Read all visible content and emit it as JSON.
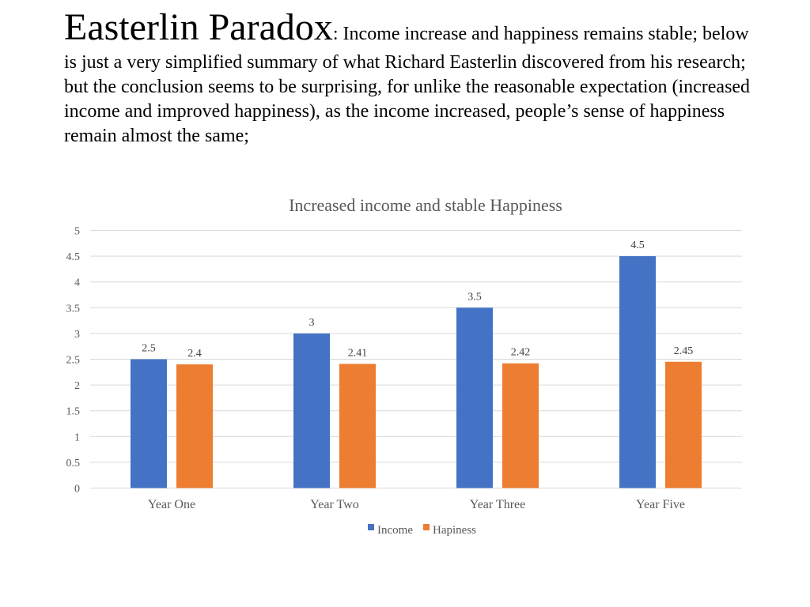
{
  "slide": {
    "title": "Easterlin Paradox",
    "subtitle": ": Income increase and happiness remains stable; below is just a very simplified summary of what Richard Easterlin discovered from his research; but the conclusion seems to be surprising, for unlike the reasonable expectation (increased income and improved happiness), as the income increased, people’s sense of happiness remain almost the same;"
  },
  "chart_data": {
    "type": "bar",
    "title": "Increased income and stable Happiness",
    "categories": [
      "Year One",
      "Year Two",
      "Year Three",
      "Year Five"
    ],
    "series": [
      {
        "name": "Income",
        "color": "#4472C4",
        "values": [
          2.5,
          3,
          3.5,
          4.5
        ],
        "labels": [
          "2.5",
          "3",
          "3.5",
          "4.5"
        ]
      },
      {
        "name": "Hapiness",
        "color": "#ED7D31",
        "values": [
          2.4,
          2.41,
          2.42,
          2.45
        ],
        "labels": [
          "2.4",
          "2.41",
          "2.42",
          "2.45"
        ]
      }
    ],
    "yticks": [
      "0",
      "0.5",
      "1",
      "1.5",
      "2",
      "2.5",
      "3",
      "3.5",
      "4",
      "4.5",
      "5"
    ],
    "ylim": [
      0,
      5
    ],
    "grid": true,
    "legend": "bottom",
    "xlabel": "",
    "ylabel": ""
  }
}
